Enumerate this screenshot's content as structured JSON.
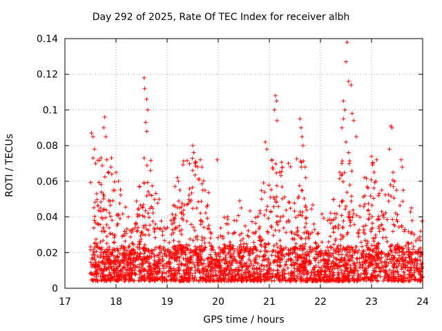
{
  "chart_data": {
    "type": "scatter",
    "title": "Day 292 of 2025, Rate Of TEC Index for receiver albh",
    "xlabel": "GPS time / hours",
    "ylabel": "ROTI / TECUs",
    "xlim": [
      17,
      24
    ],
    "ylim": [
      0,
      0.14
    ],
    "xticks": [
      17,
      18,
      19,
      20,
      21,
      22,
      23,
      24
    ],
    "xtick_labels": [
      "17",
      "18",
      "19",
      "20",
      "21",
      "22",
      "23",
      "24"
    ],
    "yticks": [
      0,
      0.02,
      0.04,
      0.06,
      0.08,
      0.1,
      0.12,
      0.14
    ],
    "ytick_labels": [
      "0",
      "0.02",
      "0.04",
      "0.06",
      "0.08",
      "0.1",
      "0.12",
      "0.14"
    ],
    "grid": true,
    "marker": "+",
    "color": "#ff0000",
    "series": [
      {
        "name": "ROTI",
        "x": [
          17.52,
          17.55,
          17.58,
          17.55,
          17.6,
          17.78,
          17.76,
          17.8,
          17.82,
          17.9,
          18.0,
          18.05,
          18.55,
          18.56,
          18.6,
          18.62,
          18.58,
          18.6,
          18.55,
          18.7,
          19.2,
          19.22,
          19.25,
          19.5,
          19.52,
          19.55,
          19.65,
          19.68,
          19.7,
          19.98,
          20.42,
          20.45,
          20.92,
          20.95,
          21.12,
          21.14,
          21.1,
          21.15,
          21.05,
          21.2,
          21.6,
          21.62,
          21.64,
          21.66,
          21.7,
          22.38,
          22.42,
          22.45,
          22.5,
          22.52,
          22.55,
          22.6,
          22.62,
          22.65,
          22.7,
          22.45,
          22.48,
          22.5,
          22.55,
          22.42,
          23.0,
          23.02,
          23.05,
          23.1,
          23.2,
          23.35,
          23.38,
          23.4,
          23.42,
          23.45,
          23.58,
          23.6,
          23.62,
          23.78,
          23.96
        ],
        "y": [
          0.087,
          0.085,
          0.078,
          0.073,
          0.07,
          0.096,
          0.09,
          0.085,
          0.072,
          0.068,
          0.065,
          0.06,
          0.118,
          0.112,
          0.106,
          0.1,
          0.093,
          0.088,
          0.073,
          0.052,
          0.062,
          0.06,
          0.055,
          0.08,
          0.076,
          0.07,
          0.072,
          0.068,
          0.055,
          0.072,
          0.049,
          0.045,
          0.082,
          0.078,
          0.108,
          0.105,
          0.1,
          0.094,
          0.072,
          0.065,
          0.095,
          0.09,
          0.085,
          0.08,
          0.068,
          0.065,
          0.09,
          0.095,
          0.127,
          0.138,
          0.116,
          0.114,
          0.098,
          0.094,
          0.085,
          0.105,
          0.1,
          0.082,
          0.076,
          0.07,
          0.074,
          0.07,
          0.065,
          0.072,
          0.055,
          0.078,
          0.091,
          0.09,
          0.065,
          0.06,
          0.072,
          0.068,
          0.055,
          0.045,
          0.032
        ]
      }
    ],
    "dense_band": {
      "x_start": 17.5,
      "x_end": 24.0,
      "y_min": 0.004,
      "y_typical_max": 0.04,
      "y_typical_center": 0.015
    }
  }
}
